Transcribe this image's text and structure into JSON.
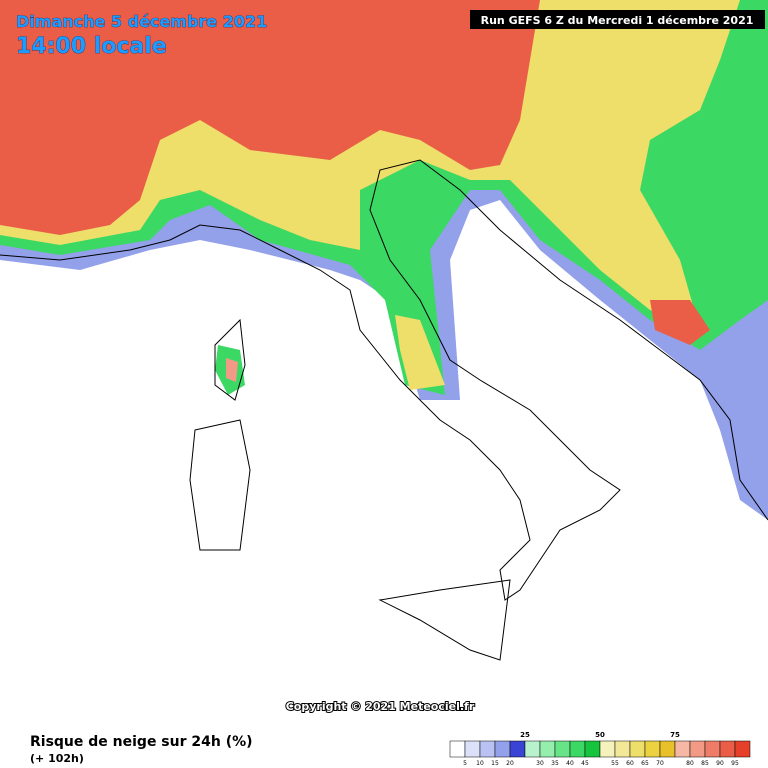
{
  "header": {
    "date": "Dimanche 5 décembre 2021",
    "time": "14:00 locale",
    "run": "Run GEFS 6 Z du Mercredi 1 décembre 2021"
  },
  "copyright": "Copyright © 2021 Meteociel.fr",
  "legend": {
    "title": "Risque de neige sur 24h (%)",
    "subtitle": "(+ 102h)",
    "colors": [
      "#ffffff",
      "#dce0f8",
      "#b9c2f2",
      "#93a0ea",
      "#3a44d4",
      "#b8f2cc",
      "#94eeac",
      "#68e488",
      "#3cd864",
      "#16c43e",
      "#f6f2bc",
      "#f2e898",
      "#eede6a",
      "#ecd240",
      "#e8c02a",
      "#f6b8a4",
      "#f29a86",
      "#ee7c66",
      "#ea5e48",
      "#e6402a"
    ],
    "major_labels": [
      25,
      50,
      75
    ],
    "minor_labels": [
      5,
      10,
      15,
      20,
      30,
      35,
      40,
      45,
      55,
      60,
      65,
      70,
      80,
      85,
      90,
      95
    ]
  }
}
